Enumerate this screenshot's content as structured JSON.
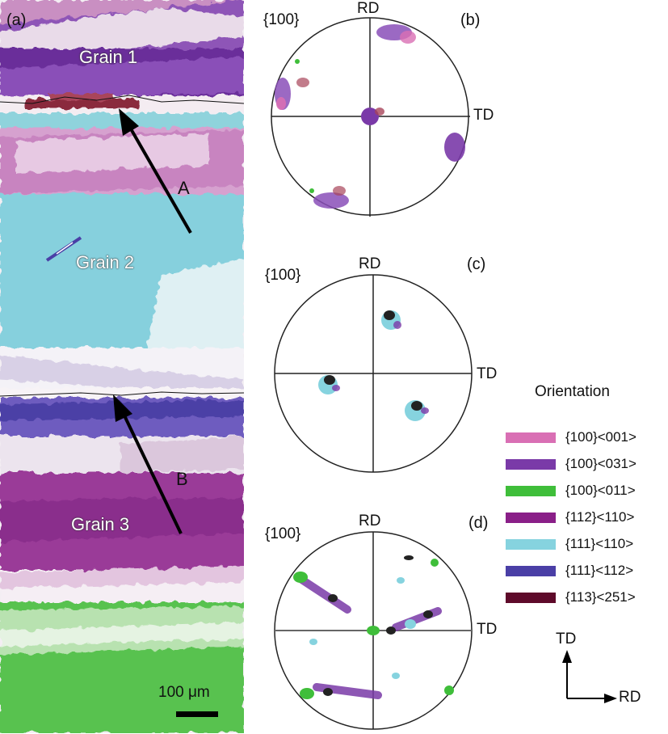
{
  "panels": {
    "a": "(a)",
    "b": "(b)",
    "c": "(c)",
    "d": "(d)"
  },
  "grains": [
    "Grain 1",
    "Grain 2",
    "Grain 3"
  ],
  "arrows": [
    "A",
    "B"
  ],
  "scale_bar": "100 μm",
  "pole_figures": [
    {
      "family": "{100}",
      "rd": "RD",
      "td": "TD"
    },
    {
      "family": "{100}",
      "rd": "RD",
      "td": "TD"
    },
    {
      "family": "{100}",
      "rd": "RD",
      "td": "TD"
    }
  ],
  "legend": {
    "title": "Orientation",
    "items": [
      {
        "label": "{100}<001>",
        "color": "#d96fb4"
      },
      {
        "label": "{100}<031>",
        "color": "#7a3aa8"
      },
      {
        "label": "{100}<011>",
        "color": "#3fbe3a"
      },
      {
        "label": "{112}<110>",
        "color": "#8a1f88"
      },
      {
        "label": "{111}<110>",
        "color": "#86d3df"
      },
      {
        "label": "{111}<112>",
        "color": "#4a3fa6"
      },
      {
        "label": "{113}<251>",
        "color": "#5e0a2a"
      }
    ]
  },
  "frame": {
    "td": "TD",
    "rd": "RD"
  }
}
